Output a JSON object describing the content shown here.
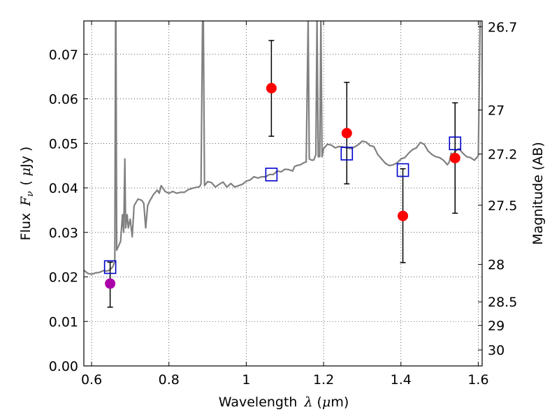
{
  "chart_data": {
    "type": "scatter",
    "xlabel": "Wavelength",
    "xlabel_symbol": "λ",
    "xlabel_unit_open": "(",
    "xlabel_unit_mu": "μ",
    "xlabel_unit_rest": "m)",
    "ylabel": "Flux",
    "ylabel_symbol": "F",
    "ylabel_symbol_sub": "ν",
    "ylabel_unit_open": "(",
    "ylabel_unit_mu": "μ",
    "ylabel_unit_rest": "Jy )",
    "y2label": "Magnitude (AB)",
    "xlim": [
      0.58,
      1.61
    ],
    "ylim": [
      0.0,
      0.0775
    ],
    "grid": true,
    "x_ticks": [
      "0.6",
      "0.8",
      "1",
      "1.2",
      "1.4",
      "1.6"
    ],
    "x_tick_values": [
      0.6,
      0.8,
      1.0,
      1.2,
      1.4,
      1.6
    ],
    "y_ticks": [
      "0.00",
      "0.01",
      "0.02",
      "0.03",
      "0.04",
      "0.05",
      "0.06",
      "0.07"
    ],
    "y_tick_values": [
      0.0,
      0.01,
      0.02,
      0.03,
      0.04,
      0.05,
      0.06,
      0.07
    ],
    "y2_ticks": [
      {
        "label": "26.7",
        "flux": 0.0762
      },
      {
        "label": "27",
        "flux": 0.0575
      },
      {
        "label": "27.2",
        "flux": 0.0476
      },
      {
        "label": "27.5",
        "flux": 0.0361
      },
      {
        "label": "28",
        "flux": 0.0228
      },
      {
        "label": "28.5",
        "flux": 0.0144
      },
      {
        "label": "29",
        "flux": 0.0091
      },
      {
        "label": "30",
        "flux": 0.0036
      }
    ],
    "series": [
      {
        "kind": "model_spectrum",
        "color": "#808080",
        "points": [
          [
            0.58,
            0.0215
          ],
          [
            0.59,
            0.0208
          ],
          [
            0.6,
            0.0206
          ],
          [
            0.61,
            0.0209
          ],
          [
            0.62,
            0.021
          ],
          [
            0.63,
            0.0214
          ],
          [
            0.64,
            0.0213
          ],
          [
            0.645,
            0.0215
          ],
          [
            0.65,
            0.0218
          ],
          [
            0.655,
            0.0223
          ],
          [
            0.66,
            0.0235
          ],
          [
            0.662,
            0.078
          ],
          [
            0.663,
            0.078
          ],
          [
            0.665,
            0.026
          ],
          [
            0.67,
            0.027
          ],
          [
            0.675,
            0.028
          ],
          [
            0.68,
            0.034
          ],
          [
            0.683,
            0.03
          ],
          [
            0.686,
            0.0465
          ],
          [
            0.688,
            0.031
          ],
          [
            0.692,
            0.034
          ],
          [
            0.695,
            0.031
          ],
          [
            0.7,
            0.033
          ],
          [
            0.705,
            0.029
          ],
          [
            0.71,
            0.036
          ],
          [
            0.72,
            0.0375
          ],
          [
            0.73,
            0.0372
          ],
          [
            0.735,
            0.0365
          ],
          [
            0.74,
            0.031
          ],
          [
            0.745,
            0.036
          ],
          [
            0.75,
            0.037
          ],
          [
            0.76,
            0.0385
          ],
          [
            0.77,
            0.0395
          ],
          [
            0.775,
            0.0388
          ],
          [
            0.78,
            0.0405
          ],
          [
            0.79,
            0.0392
          ],
          [
            0.8,
            0.0388
          ],
          [
            0.81,
            0.0392
          ],
          [
            0.82,
            0.0388
          ],
          [
            0.83,
            0.039
          ],
          [
            0.84,
            0.039
          ],
          [
            0.85,
            0.0396
          ],
          [
            0.86,
            0.0399
          ],
          [
            0.87,
            0.0401
          ],
          [
            0.88,
            0.0403
          ],
          [
            0.883,
            0.041
          ],
          [
            0.887,
            0.078
          ],
          [
            0.889,
            0.078
          ],
          [
            0.892,
            0.0405
          ],
          [
            0.9,
            0.0414
          ],
          [
            0.91,
            0.0412
          ],
          [
            0.92,
            0.0402
          ],
          [
            0.93,
            0.0408
          ],
          [
            0.94,
            0.0413
          ],
          [
            0.95,
            0.0402
          ],
          [
            0.96,
            0.041
          ],
          [
            0.97,
            0.0402
          ],
          [
            0.98,
            0.0405
          ],
          [
            0.99,
            0.0408
          ],
          [
            1.0,
            0.0415
          ],
          [
            1.01,
            0.0418
          ],
          [
            1.02,
            0.0425
          ],
          [
            1.03,
            0.0422
          ],
          [
            1.04,
            0.0425
          ],
          [
            1.05,
            0.0425
          ],
          [
            1.06,
            0.043
          ],
          [
            1.07,
            0.043
          ],
          [
            1.08,
            0.0438
          ],
          [
            1.09,
            0.0436
          ],
          [
            1.1,
            0.0442
          ],
          [
            1.11,
            0.0441
          ],
          [
            1.12,
            0.0438
          ],
          [
            1.125,
            0.0448
          ],
          [
            1.13,
            0.045
          ],
          [
            1.14,
            0.0452
          ],
          [
            1.15,
            0.0457
          ],
          [
            1.155,
            0.0458
          ],
          [
            1.16,
            0.078
          ],
          [
            1.163,
            0.0465
          ],
          [
            1.17,
            0.0462
          ],
          [
            1.175,
            0.0463
          ],
          [
            1.18,
            0.0475
          ],
          [
            1.183,
            0.078
          ],
          [
            1.186,
            0.047
          ],
          [
            1.19,
            0.047
          ],
          [
            1.193,
            0.078
          ],
          [
            1.196,
            0.047
          ],
          [
            1.2,
            0.0488
          ],
          [
            1.21,
            0.0498
          ],
          [
            1.22,
            0.0496
          ],
          [
            1.23,
            0.049
          ],
          [
            1.24,
            0.0493
          ],
          [
            1.25,
            0.0492
          ],
          [
            1.26,
            0.049
          ],
          [
            1.27,
            0.0488
          ],
          [
            1.28,
            0.0492
          ],
          [
            1.29,
            0.0497
          ],
          [
            1.3,
            0.0505
          ],
          [
            1.31,
            0.0503
          ],
          [
            1.32,
            0.0495
          ],
          [
            1.33,
            0.0493
          ],
          [
            1.34,
            0.0475
          ],
          [
            1.35,
            0.0465
          ],
          [
            1.36,
            0.0455
          ],
          [
            1.37,
            0.045
          ],
          [
            1.38,
            0.0452
          ],
          [
            1.39,
            0.0456
          ],
          [
            1.4,
            0.0465
          ],
          [
            1.41,
            0.0468
          ],
          [
            1.42,
            0.0478
          ],
          [
            1.43,
            0.0486
          ],
          [
            1.44,
            0.049
          ],
          [
            1.45,
            0.0502
          ],
          [
            1.46,
            0.0498
          ],
          [
            1.47,
            0.0483
          ],
          [
            1.48,
            0.0475
          ],
          [
            1.49,
            0.047
          ],
          [
            1.5,
            0.0468
          ],
          [
            1.51,
            0.0462
          ],
          [
            1.52,
            0.0452
          ],
          [
            1.525,
            0.0458
          ],
          [
            1.53,
            0.0478
          ],
          [
            1.535,
            0.0475
          ],
          [
            1.54,
            0.0482
          ],
          [
            1.55,
            0.0488
          ],
          [
            1.56,
            0.0478
          ],
          [
            1.57,
            0.047
          ],
          [
            1.58,
            0.0468
          ],
          [
            1.59,
            0.0462
          ],
          [
            1.6,
            0.0472
          ],
          [
            1.605,
            0.078
          ],
          [
            1.61,
            0.078
          ]
        ]
      },
      {
        "kind": "model_photometry",
        "marker": "open-square",
        "color": "#0000cc",
        "points": [
          [
            0.648,
            0.0222
          ],
          [
            1.065,
            0.043
          ],
          [
            1.26,
            0.0477
          ],
          [
            1.405,
            0.044
          ],
          [
            1.54,
            0.05
          ]
        ]
      },
      {
        "kind": "detections",
        "marker": "filled-circle",
        "color": "#ff0000",
        "points": [
          {
            "x": 1.065,
            "y": 0.0624,
            "err_lo": 0.0516,
            "err_hi": 0.0731
          },
          {
            "x": 1.26,
            "y": 0.0523,
            "err_lo": 0.0409,
            "err_hi": 0.0637
          },
          {
            "x": 1.405,
            "y": 0.0337,
            "err_lo": 0.0232,
            "err_hi": 0.0443
          },
          {
            "x": 1.54,
            "y": 0.0467,
            "err_lo": 0.0343,
            "err_hi": 0.0591
          }
        ]
      },
      {
        "kind": "detection_optical",
        "marker": "filled-circle",
        "color": "#aa00aa",
        "points": [
          {
            "x": 0.648,
            "y": 0.0185,
            "err_lo": 0.0132,
            "err_hi": 0.0233
          }
        ]
      }
    ]
  }
}
